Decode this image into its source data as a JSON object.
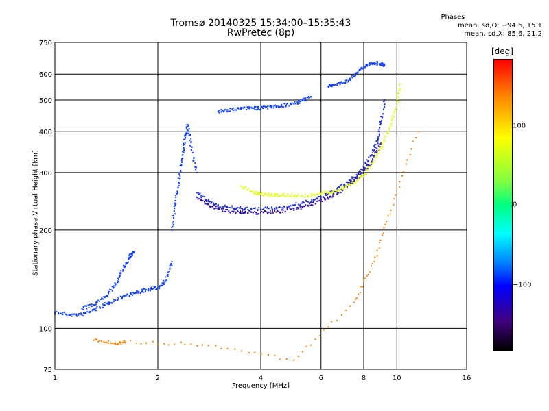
{
  "title_line1": "Tromsø 20140325 15:34:00–15:35:43",
  "title_line2": "RwPretec (8p)",
  "stats": {
    "heading": "Phases",
    "line_O": "mean, sd,O: −94.6, 15.1",
    "line_X": "mean, sd,X:  85.6, 21.2"
  },
  "colorbar": {
    "title": "[deg]",
    "ticks": [
      "100",
      "0",
      "−100"
    ],
    "range": [
      -180,
      180
    ],
    "tick_values": [
      100,
      0,
      -100
    ]
  },
  "chart_data": {
    "type": "scatter",
    "title": "Tromsø 20140325 15:34:00–15:35:43",
    "subtitle": "RwPretec (8p)",
    "xlabel": "Frequency [MHz]",
    "ylabel": "Stationary phase Virtual Height [km]",
    "xscale": "log",
    "yscale": "log",
    "xlim": [
      1,
      16
    ],
    "ylim": [
      75,
      750
    ],
    "xticks": [
      1,
      2,
      4,
      6,
      8,
      10,
      16
    ],
    "xtick_labels": [
      "1",
      "2",
      "4",
      "6",
      "8",
      "10",
      "16"
    ],
    "yticks": [
      75,
      100,
      200,
      300,
      400,
      500,
      600,
      750
    ],
    "ytick_labels": [
      "75",
      "100",
      "200",
      "300",
      "400",
      "500",
      "600",
      "750"
    ],
    "grid": true,
    "color_encoding": "phase [deg]",
    "series": [
      {
        "color": "#1040ff",
        "phase": -100,
        "x": [
          1.0,
          1.1,
          1.2,
          1.3,
          1.4,
          1.5,
          1.6,
          1.7,
          1.8,
          1.9,
          2.0,
          2.1,
          2.2
        ],
        "y": [
          112,
          110,
          110,
          114,
          118,
          122,
          126,
          128,
          130,
          132,
          133,
          140,
          160
        ]
      },
      {
        "color": "#1040ff",
        "phase": -100,
        "x": [
          1.2,
          1.3,
          1.4,
          1.5,
          1.55,
          1.6,
          1.65,
          1.7
        ],
        "y": [
          115,
          118,
          125,
          135,
          145,
          155,
          165,
          172
        ]
      },
      {
        "color": "#1040ff",
        "phase": -100,
        "x": [
          2.2,
          2.25,
          2.3,
          2.35,
          2.4,
          2.45,
          2.5,
          2.6
        ],
        "y": [
          200,
          240,
          280,
          330,
          380,
          420,
          360,
          300
        ]
      },
      {
        "color": "#2030d0",
        "phase": -110,
        "x": [
          2.6,
          2.8,
          3.0,
          3.3,
          3.6,
          4.0,
          4.5,
          5.0,
          5.5,
          6.0,
          6.5,
          7.0,
          7.5,
          8.0,
          8.5,
          8.8,
          9.0,
          9.2
        ],
        "y": [
          260,
          245,
          238,
          234,
          232,
          232,
          234,
          238,
          244,
          252,
          262,
          275,
          290,
          310,
          345,
          380,
          430,
          500
        ]
      },
      {
        "color": "#3010b0",
        "phase": -120,
        "x": [
          2.6,
          2.8,
          3.0,
          3.3,
          3.6,
          4.0,
          4.5,
          5.0,
          5.5,
          6.0,
          6.5,
          7.0,
          7.5,
          8.0,
          8.5,
          9.0
        ],
        "y": [
          252,
          240,
          232,
          228,
          226,
          226,
          228,
          232,
          238,
          246,
          256,
          268,
          282,
          300,
          330,
          370
        ]
      },
      {
        "color": "#e0ff20",
        "phase": 90,
        "x": [
          3.5,
          3.8,
          4.0,
          4.3,
          4.6,
          5.0,
          5.5,
          6.0,
          6.5,
          7.0,
          7.5,
          8.0,
          8.5,
          9.0,
          9.5,
          10.0,
          10.2
        ],
        "y": [
          272,
          262,
          258,
          256,
          256,
          255,
          255,
          258,
          262,
          270,
          280,
          295,
          320,
          360,
          410,
          480,
          560
        ]
      },
      {
        "color": "#1040ff",
        "phase": -100,
        "x": [
          3.0,
          3.2,
          3.5,
          3.8,
          4.0,
          4.3,
          4.6,
          5.0,
          5.3,
          5.6
        ],
        "y": [
          460,
          466,
          470,
          472,
          472,
          476,
          480,
          488,
          498,
          512
        ]
      },
      {
        "color": "#1040ff",
        "phase": -100,
        "x": [
          6.3,
          6.5,
          7.0,
          7.5,
          7.8,
          8.2,
          8.6,
          9.0,
          9.2
        ],
        "y": [
          550,
          555,
          565,
          590,
          620,
          640,
          650,
          645,
          640
        ]
      },
      {
        "color": "#ff8000",
        "phase": 160,
        "x": [
          1.3,
          1.5,
          1.6,
          2.7,
          5.0,
          7.5,
          8.6,
          9.6,
          11.5
        ],
        "y": [
          92,
          90,
          91,
          89,
          80,
          120,
          160,
          230,
          400
        ]
      }
    ]
  }
}
